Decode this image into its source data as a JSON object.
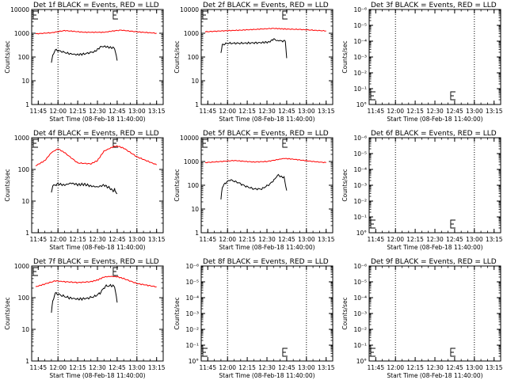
{
  "chart_data": [
    {
      "type": "line",
      "title": "Det 1f BLACK = Events, RED = LLD",
      "xlabel": "Start Time (08-Feb-18 11:40:00)",
      "ylabel": "Counts/sec",
      "yscale": "log",
      "ylim": [
        1,
        10000
      ],
      "ytick_labels": [
        "1",
        "10",
        "100",
        "1000",
        "10000"
      ],
      "xlim_minutes": [
        0,
        100
      ],
      "xtick_labels": [
        "11:45",
        "12:00",
        "12:15",
        "12:30",
        "12:45",
        "13:00",
        "13:15"
      ],
      "markers": [
        "12:00",
        "13:00"
      ],
      "grid": false,
      "series": [
        {
          "color": "#ff0000",
          "x_minutes": [
            3,
            15,
            25,
            40,
            55,
            62,
            68,
            80,
            95
          ],
          "values": [
            950,
            1050,
            1300,
            1100,
            1100,
            1250,
            1350,
            1150,
            1000
          ]
        },
        {
          "color": "#000000",
          "x_minutes": [
            15,
            16,
            18,
            22,
            28,
            35,
            40,
            48,
            53,
            57,
            60,
            63,
            65
          ],
          "values": [
            60,
            120,
            200,
            175,
            140,
            125,
            135,
            170,
            280,
            270,
            250,
            240,
            70
          ]
        }
      ]
    },
    {
      "type": "line",
      "title": "Det 2f BLACK = Events, RED = LLD",
      "xlabel": "Start Time (08-Feb-18 11:40:00)",
      "ylabel": "Counts/sec",
      "yscale": "log",
      "ylim": [
        1,
        10000
      ],
      "ytick_labels": [
        "1",
        "10",
        "100",
        "1000",
        "10000"
      ],
      "xlim_minutes": [
        0,
        100
      ],
      "xtick_labels": [
        "11:45",
        "12:00",
        "12:15",
        "12:30",
        "12:45",
        "13:00",
        "13:15"
      ],
      "markers": [
        "12:00",
        "13:00"
      ],
      "grid": false,
      "series": [
        {
          "color": "#ff0000",
          "x_minutes": [
            3,
            15,
            30,
            45,
            55,
            60,
            65,
            75,
            95
          ],
          "values": [
            1150,
            1250,
            1350,
            1500,
            1600,
            1550,
            1500,
            1450,
            1250
          ]
        },
        {
          "color": "#000000",
          "x_minutes": [
            15,
            16,
            20,
            30,
            45,
            52,
            55,
            57,
            60,
            64,
            65
          ],
          "values": [
            150,
            330,
            380,
            380,
            400,
            430,
            580,
            500,
            480,
            470,
            90
          ]
        }
      ]
    },
    {
      "type": "line",
      "title": "Det 3f BLACK = Events, RED = LLD",
      "xlabel": "Start Time (08-Feb-18 11:40:00)",
      "ylabel": "Counts/sec",
      "yscale": "log",
      "ylim": [
        1,
        10
      ],
      "ytick_labels": [
        "10°",
        "10⁻¹",
        "10⁻²",
        "10⁻³",
        "10⁻⁴",
        "10⁻⁵",
        "10⁻⁶"
      ],
      "xlim_minutes": [
        0,
        100
      ],
      "xtick_labels": [
        "11:45",
        "12:00",
        "12:15",
        "12:30",
        "12:45",
        "13:00",
        "13:15"
      ],
      "markers": [
        "12:00",
        "13:00"
      ],
      "grid": false,
      "series": []
    },
    {
      "type": "line",
      "title": "Det 4f BLACK = Events, RED = LLD",
      "xlabel": "Start Time (08-Feb-18 11:40:00)",
      "ylabel": "Counts/sec",
      "yscale": "log",
      "ylim": [
        1,
        1000
      ],
      "ytick_labels": [
        "1",
        "10",
        "100",
        "1000"
      ],
      "xlim_minutes": [
        0,
        100
      ],
      "xtick_labels": [
        "11:45",
        "12:00",
        "12:15",
        "12:30",
        "12:45",
        "13:00",
        "13:15"
      ],
      "markers": [
        "12:00",
        "13:00"
      ],
      "grid": false,
      "series": [
        {
          "color": "#ff0000",
          "x_minutes": [
            3,
            10,
            15,
            20,
            25,
            35,
            45,
            50,
            55,
            62,
            65,
            70,
            80,
            95
          ],
          "values": [
            130,
            190,
            340,
            450,
            340,
            160,
            150,
            190,
            380,
            520,
            550,
            470,
            250,
            140
          ]
        },
        {
          "color": "#000000",
          "x_minutes": [
            15,
            16,
            20,
            25,
            30,
            35,
            40,
            45,
            50,
            55,
            60,
            62,
            63,
            64,
            65
          ],
          "values": [
            18,
            30,
            35,
            32,
            37,
            33,
            34,
            30,
            28,
            32,
            25,
            20,
            24,
            18,
            17
          ]
        }
      ]
    },
    {
      "type": "line",
      "title": "Det 5f BLACK = Events, RED = LLD",
      "xlabel": "Start Time (08-Feb-18 11:40:00)",
      "ylabel": "Counts/sec",
      "yscale": "log",
      "ylim": [
        1,
        10000
      ],
      "ytick_labels": [
        "1",
        "10",
        "100",
        "1000",
        "10000"
      ],
      "xlim_minutes": [
        0,
        100
      ],
      "xtick_labels": [
        "11:45",
        "12:00",
        "12:15",
        "12:30",
        "12:45",
        "13:00",
        "13:15"
      ],
      "markers": [
        "12:00",
        "13:00"
      ],
      "grid": false,
      "series": [
        {
          "color": "#ff0000",
          "x_minutes": [
            3,
            15,
            25,
            40,
            50,
            58,
            63,
            70,
            85,
            95
          ],
          "values": [
            900,
            1000,
            1100,
            950,
            1000,
            1200,
            1350,
            1250,
            1000,
            900
          ]
        },
        {
          "color": "#000000",
          "x_minutes": [
            15,
            16,
            18,
            22,
            28,
            34,
            40,
            46,
            52,
            56,
            58,
            60,
            63,
            65
          ],
          "values": [
            25,
            80,
            120,
            170,
            130,
            90,
            70,
            70,
            110,
            180,
            270,
            240,
            210,
            60
          ]
        }
      ]
    },
    {
      "type": "line",
      "title": "Det 6f BLACK = Events, RED = LLD",
      "xlabel": "Start Time (08-Feb-18 11:40:00)",
      "ylabel": "Counts/sec",
      "yscale": "log",
      "ylim": [
        1,
        10
      ],
      "ytick_labels": [
        "10°",
        "10⁻¹",
        "10⁻²",
        "10⁻³",
        "10⁻⁴",
        "10⁻⁵",
        "10⁻⁶"
      ],
      "xlim_minutes": [
        0,
        100
      ],
      "xtick_labels": [
        "11:45",
        "12:00",
        "12:15",
        "12:30",
        "12:45",
        "13:00",
        "13:15"
      ],
      "markers": [
        "12:00",
        "13:00"
      ],
      "grid": false,
      "series": []
    },
    {
      "type": "line",
      "title": "Det 7f BLACK = Events, RED = LLD",
      "xlabel": "Start Time (08-Feb-18 11:40:00)",
      "ylabel": "Counts/sec",
      "yscale": "log",
      "ylim": [
        1,
        1000
      ],
      "ytick_labels": [
        "1",
        "10",
        "100",
        "1000"
      ],
      "xlim_minutes": [
        0,
        100
      ],
      "xtick_labels": [
        "11:45",
        "12:00",
        "12:15",
        "12:30",
        "12:45",
        "13:00",
        "13:15"
      ],
      "markers": [
        "12:00",
        "13:00"
      ],
      "grid": false,
      "series": [
        {
          "color": "#ff0000",
          "x_minutes": [
            3,
            10,
            18,
            25,
            35,
            45,
            50,
            55,
            60,
            65,
            70,
            80,
            95
          ],
          "values": [
            220,
            270,
            340,
            320,
            300,
            320,
            360,
            450,
            470,
            460,
            400,
            280,
            220
          ]
        },
        {
          "color": "#000000",
          "x_minutes": [
            15,
            16,
            18,
            22,
            28,
            35,
            42,
            48,
            52,
            56,
            60,
            63,
            65
          ],
          "values": [
            35,
            80,
            140,
            120,
            100,
            90,
            95,
            110,
            140,
            230,
            240,
            230,
            70
          ]
        }
      ]
    },
    {
      "type": "line",
      "title": "Det 8f BLACK = Events, RED = LLD",
      "xlabel": "Start Time (08-Feb-18 11:40:00)",
      "ylabel": "Counts/sec",
      "yscale": "log",
      "ylim": [
        1,
        10
      ],
      "ytick_labels": [
        "10°",
        "10⁻¹",
        "10⁻²",
        "10⁻³",
        "10⁻⁴",
        "10⁻⁵",
        "10⁻⁶"
      ],
      "xlim_minutes": [
        0,
        100
      ],
      "xtick_labels": [
        "11:45",
        "12:00",
        "12:15",
        "12:30",
        "12:45",
        "13:00",
        "13:15"
      ],
      "markers": [
        "12:00",
        "13:00"
      ],
      "grid": false,
      "series": []
    },
    {
      "type": "line",
      "title": "Det 9f BLACK = Events, RED = LLD",
      "xlabel": "Start Time (08-Feb-18 11:40:00)",
      "ylabel": "Counts/sec",
      "yscale": "log",
      "ylim": [
        1,
        10
      ],
      "ytick_labels": [
        "10°",
        "10⁻¹",
        "10⁻²",
        "10⁻³",
        "10⁻⁴",
        "10⁻⁵",
        "10⁻⁶"
      ],
      "xlim_minutes": [
        0,
        100
      ],
      "xtick_labels": [
        "11:45",
        "12:00",
        "12:15",
        "12:30",
        "12:45",
        "13:00",
        "13:15"
      ],
      "markers": [
        "12:00",
        "13:00"
      ],
      "grid": false,
      "series": []
    }
  ]
}
